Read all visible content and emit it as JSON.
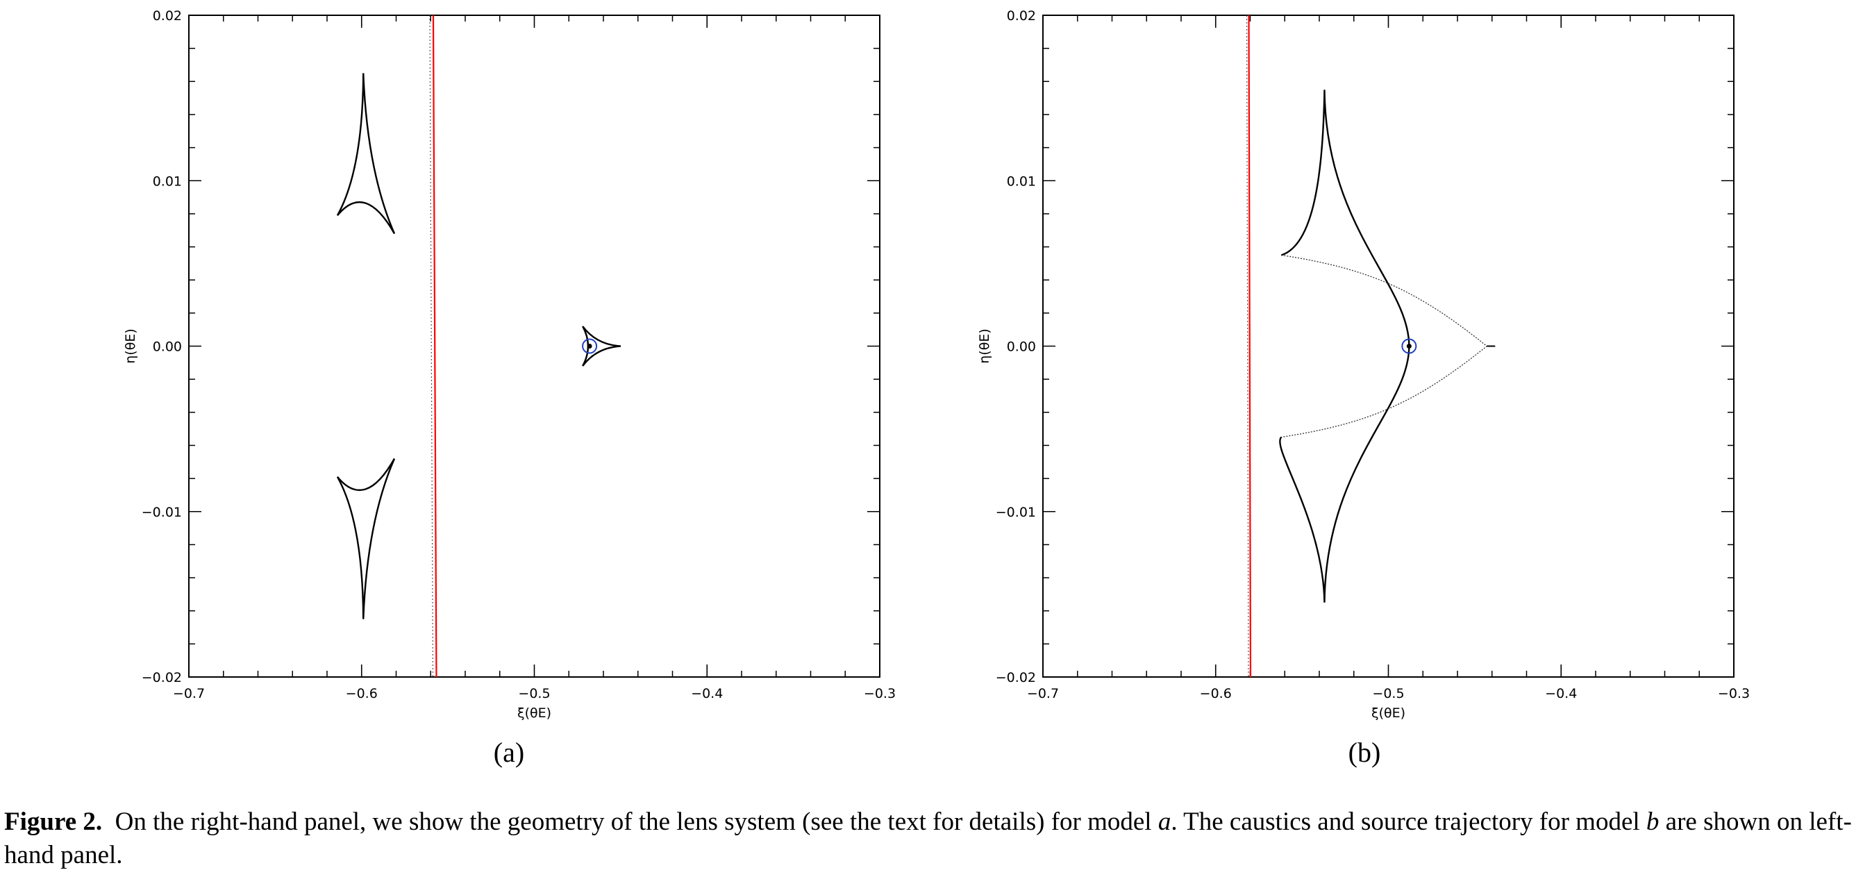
{
  "figure": {
    "label": "Figure 2.",
    "caption_part1": "On the right-hand panel, we show the geometry of the lens system (see the text for details) for model ",
    "model_a": "a",
    "caption_part2": ". The caustics and source trajectory for model ",
    "model_b": "b",
    "caption_part3": " are shown on left-hand panel."
  },
  "panels": [
    {
      "caption": "(a)"
    },
    {
      "caption": "(b)"
    }
  ],
  "colors": {
    "trajectory": "#ff0000",
    "source_marker": "#1f3fbf",
    "caustic": "#000000"
  },
  "chart_data": [
    {
      "type": "scatter",
      "panel": "(a)",
      "title": "",
      "xlabel": "ξ(θE)",
      "ylabel": "η(θE)",
      "xlim": [
        -0.7,
        -0.3
      ],
      "ylim": [
        -0.02,
        0.02
      ],
      "xticks": [
        -0.7,
        -0.6,
        -0.5,
        -0.4,
        -0.3
      ],
      "xtick_labels": [
        "−0.7",
        "−0.6",
        "−0.5",
        "−0.4",
        "−0.3"
      ],
      "yticks": [
        -0.02,
        -0.01,
        0.0,
        0.01,
        0.02
      ],
      "ytick_labels": [
        "−0.02",
        "−0.01",
        "0.00",
        "0.01",
        "0.02"
      ],
      "caustics": [
        {
          "name": "upper triangular caustic",
          "cusps": [
            [
              -0.599,
              0.0165
            ],
            [
              -0.614,
              0.0079
            ],
            [
              -0.581,
              0.0068
            ]
          ]
        },
        {
          "name": "lower triangular caustic",
          "cusps": [
            [
              -0.599,
              -0.0165
            ],
            [
              -0.614,
              -0.0079
            ],
            [
              -0.581,
              -0.0068
            ]
          ]
        },
        {
          "name": "central caustic",
          "cusps": [
            [
              -0.45,
              0.0
            ],
            [
              -0.472,
              0.0012
            ],
            [
              -0.472,
              -0.0012
            ]
          ]
        }
      ],
      "trajectory": {
        "solid": [
          [
            -0.5585,
            0.02
          ],
          [
            -0.5567,
            -0.02
          ]
        ],
        "dotted": [
          [
            -0.5605,
            0.02
          ],
          [
            -0.5587,
            -0.02
          ]
        ]
      },
      "source": {
        "x": -0.468,
        "y": 0.0
      }
    },
    {
      "type": "scatter",
      "panel": "(b)",
      "title": "",
      "xlabel": "ξ(θE)",
      "ylabel": "η(θE)",
      "xlim": [
        -0.7,
        -0.3
      ],
      "ylim": [
        -0.02,
        0.02
      ],
      "xticks": [
        -0.7,
        -0.6,
        -0.5,
        -0.4,
        -0.3
      ],
      "xtick_labels": [
        "−0.7",
        "−0.6",
        "−0.5",
        "−0.4",
        "−0.3"
      ],
      "yticks": [
        -0.02,
        -0.01,
        0.0,
        0.01,
        0.02
      ],
      "ytick_labels": [
        "−0.02",
        "−0.01",
        "0.00",
        "0.01",
        "0.02"
      ],
      "caustics": [
        {
          "name": "resonant caustic",
          "cusps": [
            [
              -0.537,
              0.0155
            ],
            [
              -0.562,
              0.0055
            ],
            [
              -0.443,
              0.0
            ],
            [
              -0.562,
              -0.0055
            ],
            [
              -0.537,
              -0.0155
            ]
          ],
          "inner_fold_x": -0.488
        }
      ],
      "trajectory": {
        "solid": [
          [
            -0.5808,
            0.02
          ],
          [
            -0.5798,
            -0.02
          ]
        ],
        "dotted": [
          [
            -0.582,
            0.02
          ],
          [
            -0.581,
            -0.02
          ]
        ]
      },
      "source": {
        "x": -0.488,
        "y": 0.0
      }
    }
  ]
}
